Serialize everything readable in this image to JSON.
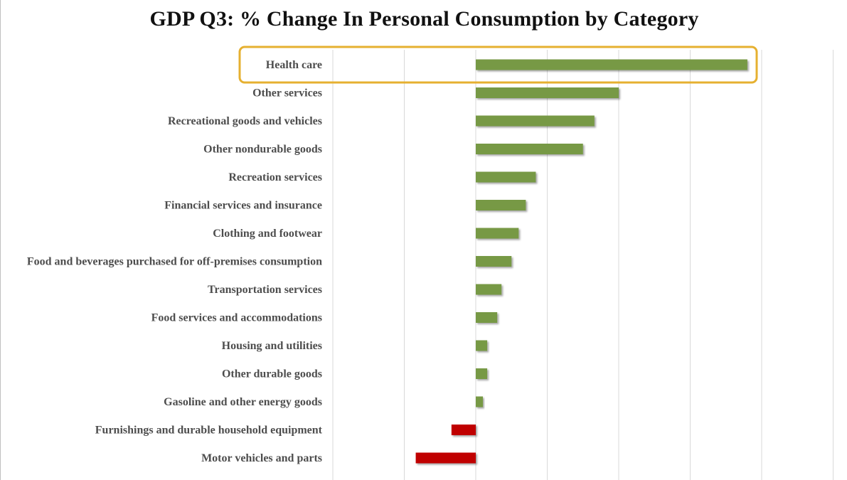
{
  "chart_data": {
    "type": "bar",
    "orientation": "horizontal",
    "title": "GDP Q3: % Change In Personal Consumption by Category",
    "xlabel": "",
    "ylabel": "",
    "xlim": [
      -1.0,
      2.5
    ],
    "grid": true,
    "highlighted_category": "Health care",
    "colors": {
      "positive": "#779944",
      "negative": "#c00000",
      "highlight": "#e6b030",
      "grid": "#d9d9d9"
    },
    "categories": [
      "Health care",
      "Other services",
      "Recreational goods and vehicles",
      "Other nondurable goods",
      "Recreation services",
      "Financial services and insurance",
      "Clothing and footwear",
      "Food and beverages purchased for off-premises consumption",
      "Transportation services",
      "Food services and accommodations",
      "Housing and utilities",
      "Other durable goods",
      "Gasoline and other energy goods",
      "Furnishings and durable household equipment",
      "Motor vehicles and parts"
    ],
    "values": [
      1.9,
      1.0,
      0.83,
      0.75,
      0.42,
      0.35,
      0.3,
      0.25,
      0.18,
      0.15,
      0.08,
      0.08,
      0.05,
      -0.17,
      -0.42
    ]
  }
}
